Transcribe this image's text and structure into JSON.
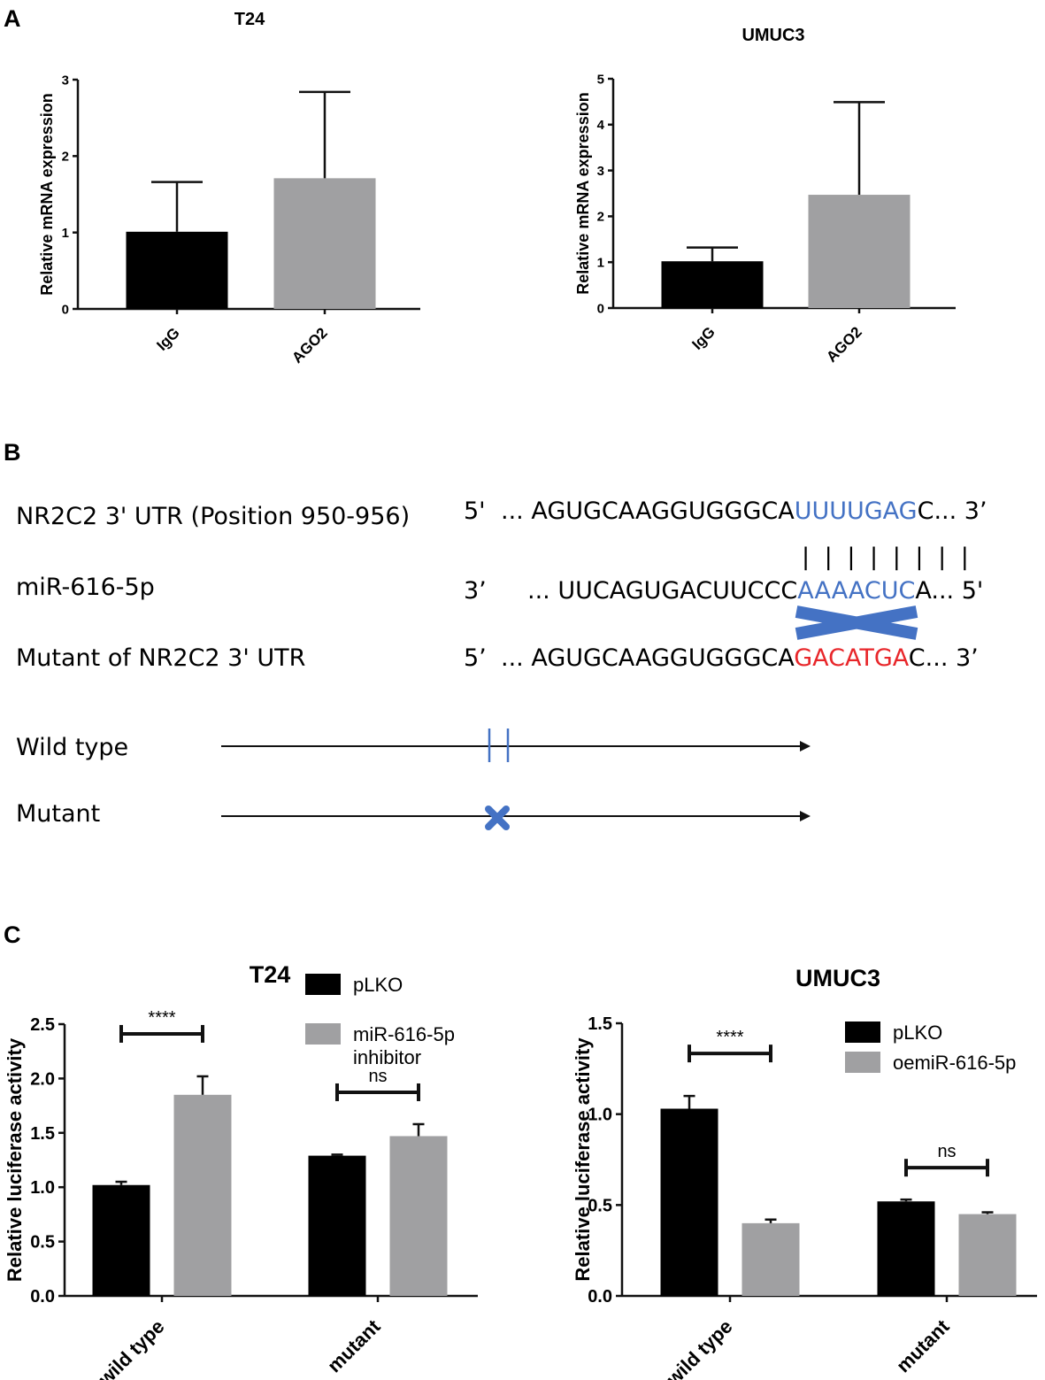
{
  "panels": {
    "A": "A",
    "B": "B",
    "C": "C"
  },
  "chart_data": [
    {
      "type": "bar",
      "title": "T24",
      "ylabel": "Relative mRNA expression",
      "ylim": [
        0,
        3
      ],
      "yticks": [
        0,
        1,
        2,
        3
      ],
      "categories": [
        "IgG",
        "AGO2"
      ],
      "values": [
        1.01,
        1.71
      ],
      "errors": [
        0.65,
        1.13
      ],
      "colors": [
        "#000000",
        "#a0a0a2"
      ]
    },
    {
      "type": "bar",
      "title": "UMUC3",
      "ylabel": "Relative mRNA expression",
      "ylim": [
        0,
        5
      ],
      "yticks": [
        0,
        1,
        2,
        3,
        4,
        5
      ],
      "categories": [
        "IgG",
        "AGO2"
      ],
      "values": [
        1.02,
        2.47
      ],
      "errors": [
        0.3,
        2.02
      ],
      "colors": [
        "#000000",
        "#a0a0a2"
      ]
    },
    {
      "type": "bar",
      "title": "T24",
      "ylabel": "Relative luciferase activity",
      "ylim": [
        0,
        2.5
      ],
      "yticks": [
        "0.0",
        "0.5",
        "1.0",
        "1.5",
        "2.0",
        "2.5"
      ],
      "categories": [
        "wild type",
        "mutant"
      ],
      "series": [
        {
          "name": "pLKO",
          "values": [
            1.02,
            1.29
          ],
          "errors": [
            0.03,
            0.01
          ],
          "color": "#000000"
        },
        {
          "name": "miR-616-5p inhibitor",
          "values": [
            1.85,
            1.47
          ],
          "errors": [
            0.17,
            0.11
          ],
          "color": "#a0a0a2"
        }
      ],
      "significance": [
        "****",
        "ns"
      ]
    },
    {
      "type": "bar",
      "title": "UMUC3",
      "ylabel": "Relative luciferase activity",
      "ylim": [
        0,
        1.5
      ],
      "yticks": [
        "0.0",
        "0.5",
        "1.0",
        "1.5"
      ],
      "categories": [
        "wild type",
        "mutant"
      ],
      "series": [
        {
          "name": "pLKO",
          "values": [
            1.03,
            0.52
          ],
          "errors": [
            0.07,
            0.01
          ],
          "color": "#000000"
        },
        {
          "name": "oemiR-616-5p",
          "values": [
            0.4,
            0.45
          ],
          "errors": [
            0.02,
            0.01
          ],
          "color": "#a0a0a2"
        }
      ],
      "significance": [
        "****",
        "ns"
      ]
    }
  ],
  "diagram": {
    "rows": [
      {
        "label": "NR2C2 3' UTR (Position 950-956)",
        "end5": "5'",
        "prefix": "... AGUGCAAGGUGGGCA",
        "site": "UUUUGAG",
        "suffix": "C... 3’",
        "site_color": "#4472c4"
      },
      {
        "label": "miR-616-5p",
        "end5": "3’",
        "prefix": "... UUCAGUGACUUCCC",
        "site": "AAAACUC",
        "suffix": "A... 5'",
        "site_color": "#4472c4"
      },
      {
        "label": "Mutant of NR2C2 3' UTR",
        "end5": "5’",
        "prefix": "... AGUGCAAGGUGGGCA",
        "site": "GACATGA",
        "suffix": "C... 3’",
        "site_color": "#e8262a"
      }
    ],
    "pairing": "| | | | | | | |",
    "constructs": [
      {
        "label": "Wild type"
      },
      {
        "label": "Mutant"
      }
    ],
    "marker_color": "#4472c4"
  }
}
